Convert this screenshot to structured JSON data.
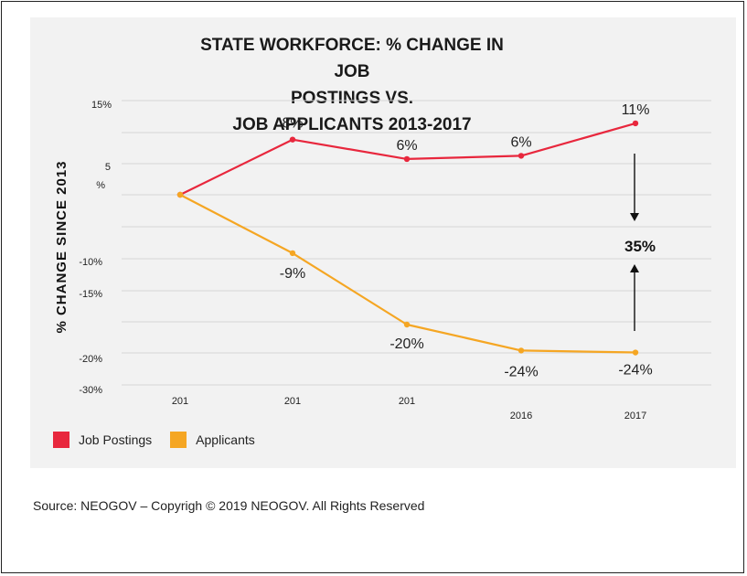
{
  "chart_data": {
    "type": "line",
    "title_lines": [
      "STATE WORKFORCE: % CHANGE IN JOB",
      "POSTINGS VS.",
      "JOB APPLICANTS 2013-2017"
    ],
    "ylabel": "% CHANGE SINCE 2013",
    "x_tick_labels": [
      "201",
      "201",
      "201",
      "2016",
      "2017"
    ],
    "y_tick_labels": [
      "15%",
      "5",
      "%",
      "-10%",
      "-15%",
      "-20%",
      "-30%"
    ],
    "series": [
      {
        "name": "Job Postings",
        "color": "#e8273d",
        "values": [
          0,
          8.5,
          5.5,
          6,
          11
        ],
        "point_labels": [
          "",
          "8%",
          "6%",
          "6%",
          "11%"
        ]
      },
      {
        "name": "Applicants",
        "color": "#f5a623",
        "values": [
          0,
          -9,
          -20,
          -24,
          -24.3
        ],
        "point_labels": [
          "",
          "-9%",
          "-20%",
          "-24%",
          "-24%"
        ]
      }
    ],
    "annotation": "35%",
    "grid": true,
    "legend_position": "bottom-left"
  },
  "source_text": "Source:  NEOGOV – Copyrigh © 2019 NEOGOV.  All Rights Reserved"
}
